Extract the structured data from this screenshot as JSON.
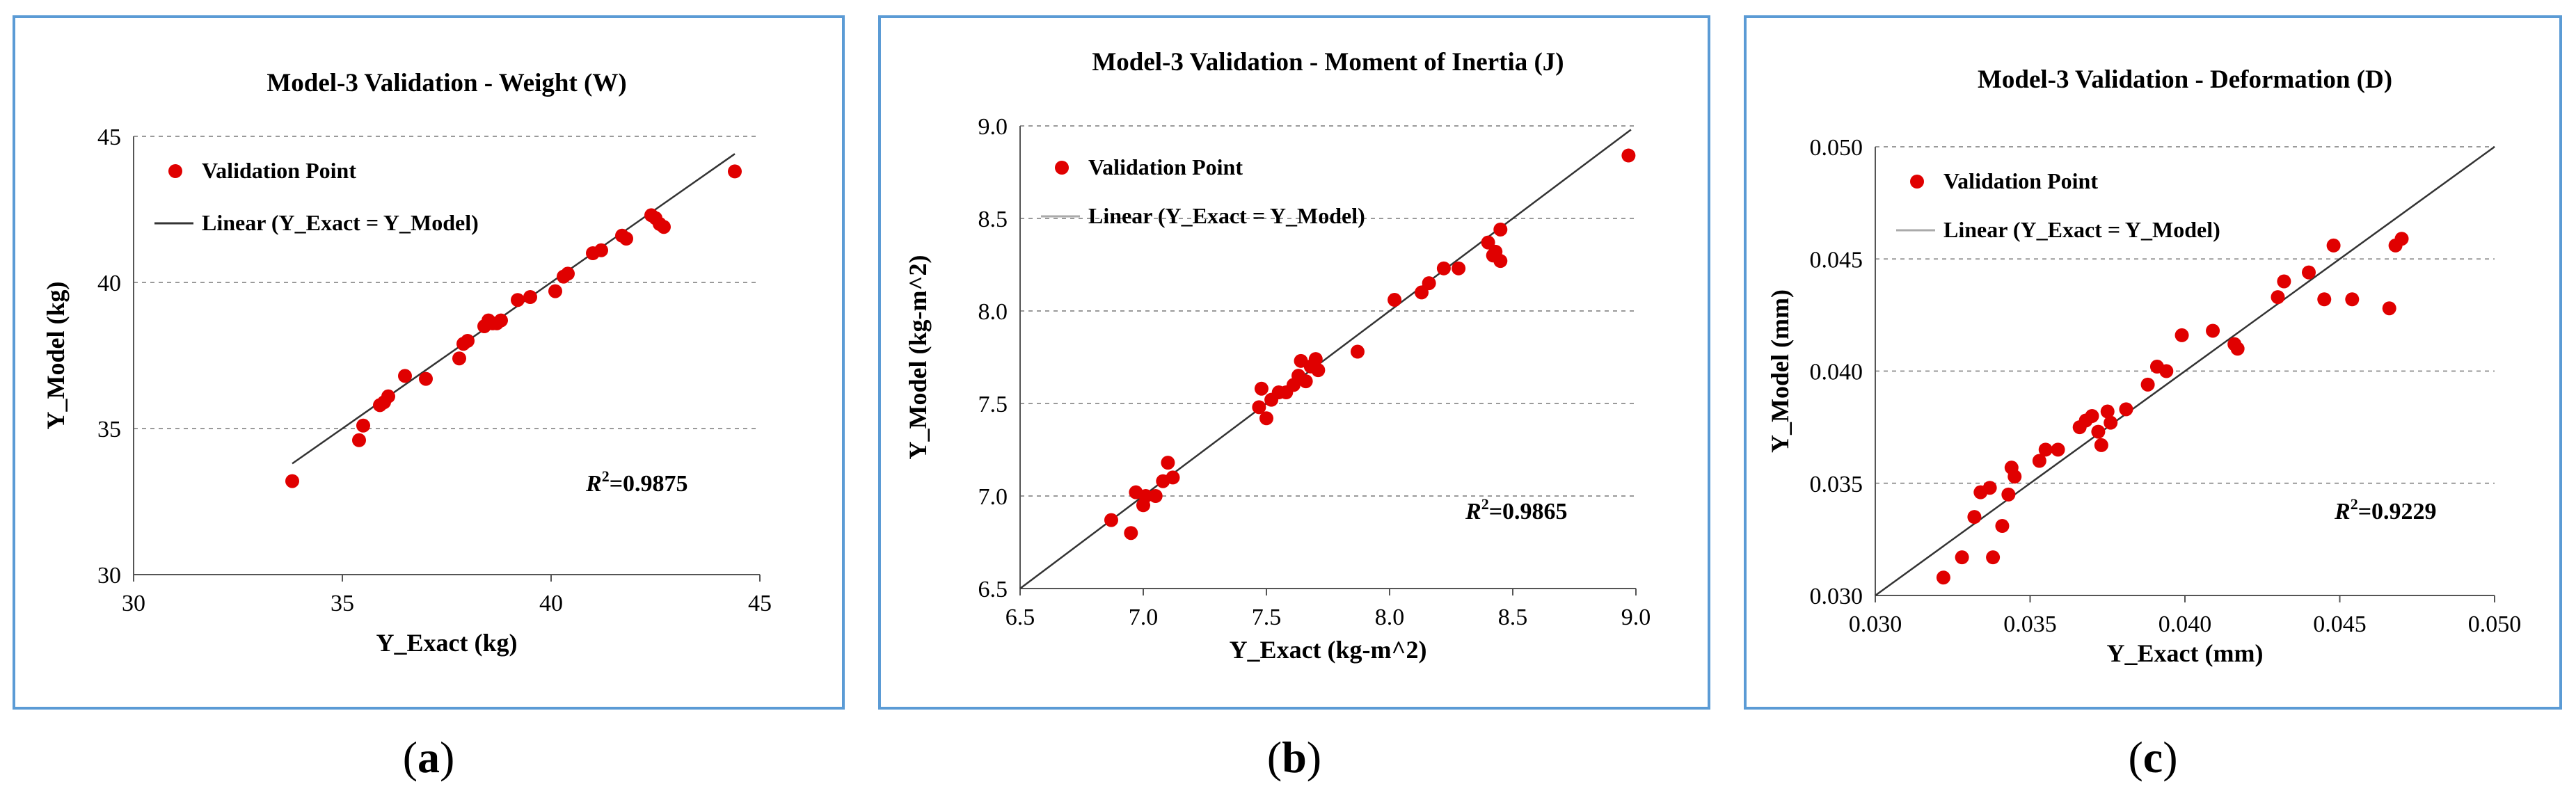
{
  "panels": [
    {
      "sublabel": "a",
      "chart_data": {
        "type": "scatter",
        "title": "Model-3 Validation - Weight (W)",
        "xlabel": "Y_Exact (kg)",
        "ylabel": "Y_Model (kg)",
        "xlim": [
          30,
          45
        ],
        "ylim": [
          30,
          45
        ],
        "xticks": [
          "30",
          "35",
          "40",
          "45"
        ],
        "yticks": [
          "30",
          "35",
          "40",
          "45"
        ],
        "legend": {
          "points": "Validation Point",
          "line": "Linear  (Y_Exact = Y_Model)"
        },
        "r2_prefix": "R",
        "r2_sup": "2",
        "r2_value": "=0.9875",
        "line": [
          [
            33.8,
            33.8
          ],
          [
            44.4,
            44.4
          ]
        ],
        "points": [
          [
            33.8,
            33.2
          ],
          [
            35.4,
            34.6
          ],
          [
            35.5,
            35.1
          ],
          [
            35.9,
            35.8
          ],
          [
            36.0,
            35.9
          ],
          [
            36.1,
            36.1
          ],
          [
            36.5,
            36.8
          ],
          [
            37.0,
            36.7
          ],
          [
            37.8,
            37.4
          ],
          [
            37.9,
            37.9
          ],
          [
            38.0,
            38.0
          ],
          [
            38.4,
            38.5
          ],
          [
            38.5,
            38.7
          ],
          [
            38.6,
            38.6
          ],
          [
            38.7,
            38.6
          ],
          [
            38.8,
            38.7
          ],
          [
            39.2,
            39.4
          ],
          [
            39.5,
            39.5
          ],
          [
            40.1,
            39.7
          ],
          [
            40.3,
            40.2
          ],
          [
            40.4,
            40.3
          ],
          [
            41.0,
            41.0
          ],
          [
            41.2,
            41.1
          ],
          [
            41.7,
            41.6
          ],
          [
            41.8,
            41.5
          ],
          [
            42.4,
            42.3
          ],
          [
            42.5,
            42.2
          ],
          [
            42.6,
            42.0
          ],
          [
            42.7,
            41.9
          ],
          [
            44.4,
            43.8
          ]
        ]
      },
      "color_points": "#e00000",
      "color_line": "#333333"
    },
    {
      "sublabel": "b",
      "chart_data": {
        "type": "scatter",
        "title": "Model-3 Validation - Moment of Inertia (J)",
        "xlabel": "Y_Exact (kg-m^2)",
        "ylabel": "Y_Model (kg-m^2)",
        "xlim": [
          6.5,
          9.0
        ],
        "ylim": [
          6.5,
          9.0
        ],
        "xticks": [
          "6.5",
          "7.0",
          "7.5",
          "8.0",
          "8.5",
          "9.0"
        ],
        "yticks": [
          "6.5",
          "7.0",
          "7.5",
          "8.0",
          "8.5",
          "9.0"
        ],
        "legend": {
          "points": "Validation Point",
          "line": "Linear (Y_Exact = Y_Model)"
        },
        "r2_prefix": "R",
        "r2_sup": "2",
        "r2_value": "=0.9865",
        "line": [
          [
            6.5,
            6.5
          ],
          [
            8.98,
            8.98
          ]
        ],
        "points": [
          [
            6.87,
            6.87
          ],
          [
            6.95,
            6.8
          ],
          [
            6.97,
            7.02
          ],
          [
            7.0,
            6.95
          ],
          [
            7.01,
            7.0
          ],
          [
            7.05,
            7.0
          ],
          [
            7.08,
            7.08
          ],
          [
            7.1,
            7.18
          ],
          [
            7.12,
            7.1
          ],
          [
            7.47,
            7.48
          ],
          [
            7.48,
            7.58
          ],
          [
            7.5,
            7.42
          ],
          [
            7.52,
            7.52
          ],
          [
            7.55,
            7.56
          ],
          [
            7.58,
            7.56
          ],
          [
            7.61,
            7.6
          ],
          [
            7.63,
            7.65
          ],
          [
            7.64,
            7.73
          ],
          [
            7.66,
            7.62
          ],
          [
            7.68,
            7.7
          ],
          [
            7.7,
            7.74
          ],
          [
            7.71,
            7.68
          ],
          [
            7.87,
            7.78
          ],
          [
            8.02,
            8.06
          ],
          [
            8.13,
            8.1
          ],
          [
            8.16,
            8.15
          ],
          [
            8.22,
            8.23
          ],
          [
            8.28,
            8.23
          ],
          [
            8.4,
            8.37
          ],
          [
            8.42,
            8.3
          ],
          [
            8.43,
            8.32
          ],
          [
            8.45,
            8.27
          ],
          [
            8.45,
            8.44
          ],
          [
            8.97,
            8.84
          ]
        ]
      },
      "color_points": "#e00000",
      "color_line": "#333333"
    },
    {
      "sublabel": "c",
      "chart_data": {
        "type": "scatter",
        "title": "Model-3 Validation - Deformation (D)",
        "xlabel": "Y_Exact (mm)",
        "ylabel": "Y_Model (mm)",
        "xlim": [
          0.03,
          0.05
        ],
        "ylim": [
          0.03,
          0.05
        ],
        "xticks": [
          "0.030",
          "0.035",
          "0.040",
          "0.045",
          "0.050"
        ],
        "yticks": [
          "0.030",
          "0.035",
          "0.040",
          "0.045",
          "0.050"
        ],
        "legend": {
          "points": "Validation Point",
          "line": "Linear (Y_Exact = Y_Model)"
        },
        "r2_prefix": "R",
        "r2_sup": "2",
        "r2_value": "=0.9229",
        "line": [
          [
            0.03,
            0.03
          ],
          [
            0.05,
            0.05
          ]
        ],
        "points": [
          [
            0.0322,
            0.0308
          ],
          [
            0.0328,
            0.0317
          ],
          [
            0.0332,
            0.0335
          ],
          [
            0.0334,
            0.0346
          ],
          [
            0.0337,
            0.0348
          ],
          [
            0.0338,
            0.0317
          ],
          [
            0.0341,
            0.0331
          ],
          [
            0.0343,
            0.0345
          ],
          [
            0.0344,
            0.0357
          ],
          [
            0.0345,
            0.0353
          ],
          [
            0.0353,
            0.036
          ],
          [
            0.0355,
            0.0365
          ],
          [
            0.0359,
            0.0365
          ],
          [
            0.0366,
            0.0375
          ],
          [
            0.0368,
            0.0378
          ],
          [
            0.037,
            0.038
          ],
          [
            0.0372,
            0.0373
          ],
          [
            0.0373,
            0.0367
          ],
          [
            0.0375,
            0.0382
          ],
          [
            0.0376,
            0.0377
          ],
          [
            0.0381,
            0.0383
          ],
          [
            0.0388,
            0.0394
          ],
          [
            0.0391,
            0.0402
          ],
          [
            0.0394,
            0.04
          ],
          [
            0.0399,
            0.0416
          ],
          [
            0.0409,
            0.0418
          ],
          [
            0.0416,
            0.0412
          ],
          [
            0.0417,
            0.041
          ],
          [
            0.043,
            0.0433
          ],
          [
            0.0432,
            0.044
          ],
          [
            0.044,
            0.0444
          ],
          [
            0.0445,
            0.0432
          ],
          [
            0.0448,
            0.0456
          ],
          [
            0.0454,
            0.0432
          ],
          [
            0.0466,
            0.0428
          ],
          [
            0.0468,
            0.0456
          ],
          [
            0.047,
            0.0459
          ]
        ]
      },
      "color_points": "#e00000",
      "color_line": "#333333"
    }
  ]
}
